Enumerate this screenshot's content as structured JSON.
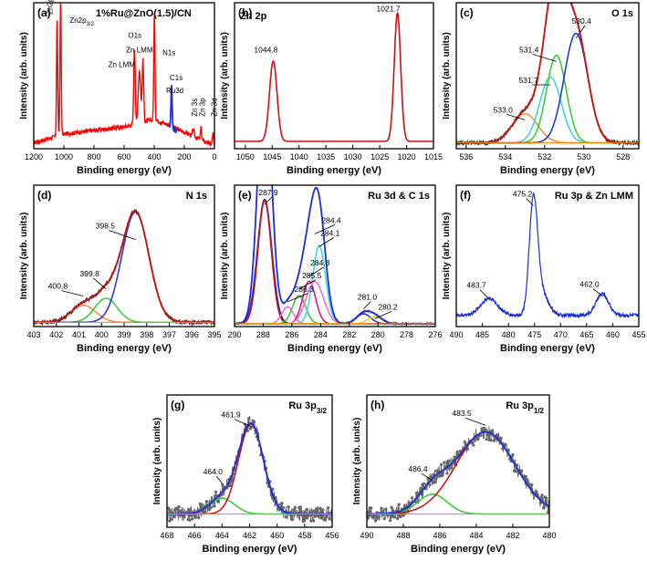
{
  "figure": {
    "domain": "XPS spectra"
  },
  "chart_data": [
    {
      "id": "a",
      "panel_label": "(a)",
      "title": "1%Ru@ZnO(1.5)/CN",
      "type": "line",
      "xlabel": "Binding energy (eV)",
      "ylabel": "Intensity (arb. units)",
      "xlim": [
        1200,
        0
      ],
      "ylim": [
        0,
        1
      ],
      "xticks": [
        1200,
        1000,
        800,
        600,
        400,
        200,
        0
      ],
      "series": [
        {
          "name": "survey",
          "color": "#ff0000",
          "width": 1.4,
          "peaks": [
            [
              1044.8,
              0.8,
              4
            ],
            [
              1021.7,
              0.92,
              4
            ],
            [
              531,
              0.52,
              5
            ],
            [
              498,
              0.36,
              8
            ],
            [
              475,
              0.42,
              5
            ],
            [
              399,
              0.72,
              4
            ],
            [
              285,
              0.28,
              4
            ],
            [
              140,
              0.05,
              5
            ],
            [
              89,
              0.08,
              4
            ],
            [
              10,
              0.08,
              4
            ]
          ],
          "background": [
            [
              1200,
              0.04
            ],
            [
              1000,
              0.1
            ],
            [
              600,
              0.15
            ],
            [
              400,
              0.2
            ],
            [
              300,
              0.16
            ],
            [
              0,
              0.02
            ]
          ]
        },
        {
          "name": "Ru segment",
          "color": "#1f2fd6",
          "width": 1.6,
          "xrange": [
            300,
            255
          ],
          "peaks": [
            [
              285,
              0.28,
              4
            ]
          ],
          "background": [
            [
              300,
              0.16
            ],
            [
              255,
              0.12
            ]
          ]
        }
      ],
      "annotations": [
        {
          "text": "Zn2p1/2",
          "rich": "Zn2p",
          "sub": "1/2",
          "rotate": -90
        },
        {
          "text": "Zn2p3/2",
          "rich": "Zn2p",
          "sub": "3/2"
        },
        {
          "text": "O1s"
        },
        {
          "text": "Zn LMM"
        },
        {
          "text": "Zn LMM"
        },
        {
          "text": "N1s"
        },
        {
          "text": "C1s"
        },
        {
          "text": "Ru3d"
        },
        {
          "text": "Zn 3s",
          "rotate": -90
        },
        {
          "text": "Zn 3p",
          "rotate": -90
        },
        {
          "text": "Zn 3d",
          "rotate": -90
        }
      ]
    },
    {
      "id": "b",
      "panel_label": "(b)",
      "title": "Zn 2p",
      "type": "line",
      "xlabel": "Binding energy (eV)",
      "ylabel": "Intensity (arb. units)",
      "xlim": [
        1052,
        1015
      ],
      "ylim": [
        0,
        1
      ],
      "xticks": [
        1050,
        1045,
        1040,
        1035,
        1030,
        1025,
        1020,
        1015
      ],
      "baseline": 0.05,
      "series": [
        {
          "name": "Zn 2p",
          "color": "#cc1111",
          "width": 1.6,
          "peaks": [
            [
              1044.8,
              0.55,
              0.7
            ],
            [
              1021.7,
              0.88,
              0.6
            ]
          ]
        }
      ],
      "peak_labels": [
        {
          "x": 1044.8,
          "text": "1044.8"
        },
        {
          "x": 1021.7,
          "text": "1021.7"
        }
      ]
    },
    {
      "id": "c",
      "panel_label": "(c)",
      "title": "O 1s",
      "type": "line",
      "xlabel": "Binding energy (eV)",
      "ylabel": "Intensity (arb. units)",
      "xlim": [
        536.5,
        527.2
      ],
      "ylim": [
        0,
        1
      ],
      "xticks": [
        536,
        534,
        532,
        530,
        528
      ],
      "baseline": 0.04,
      "noisy_envelope": true,
      "components": [
        {
          "name": "533.0",
          "center": 533.0,
          "height": 0.2,
          "sigma": 0.65,
          "color": "#f08a3c"
        },
        {
          "name": "531.7",
          "center": 531.7,
          "height": 0.45,
          "sigma": 0.55,
          "color": "#33d6e0"
        },
        {
          "name": "531.4",
          "center": 531.4,
          "height": 0.6,
          "sigma": 0.5,
          "color": "#33cc33"
        },
        {
          "name": "530.4",
          "center": 530.4,
          "height": 0.75,
          "sigma": 0.6,
          "color": "#1f2fd6"
        }
      ],
      "envelope_color": "#cc1111",
      "data_color": "#333333",
      "peak_labels": [
        {
          "x": 533.0,
          "text": "533.0"
        },
        {
          "x": 531.7,
          "text": "531.7"
        },
        {
          "x": 531.4,
          "text": "531.4"
        },
        {
          "x": 530.4,
          "text": "530.4"
        }
      ]
    },
    {
      "id": "d",
      "panel_label": "(d)",
      "title": "N 1s",
      "type": "line",
      "xlabel": "Binding energy (eV)",
      "ylabel": "Intensity (arb. units)",
      "xlim": [
        403,
        395
      ],
      "ylim": [
        0,
        1
      ],
      "xticks": [
        403,
        402,
        401,
        400,
        399,
        398,
        397,
        396,
        395
      ],
      "baseline": 0.03,
      "noisy_envelope": true,
      "components": [
        {
          "name": "400.8",
          "center": 400.8,
          "height": 0.12,
          "sigma": 0.55,
          "color": "#f08a3c"
        },
        {
          "name": "399.8",
          "center": 399.8,
          "height": 0.17,
          "sigma": 0.5,
          "color": "#33cc33"
        },
        {
          "name": "398.5",
          "center": 398.5,
          "height": 0.78,
          "sigma": 0.6,
          "color": "#1f2fd6"
        }
      ],
      "envelope_color": "#cc1111",
      "data_color": "#333333",
      "peak_labels": [
        {
          "x": 400.8,
          "text": "400.8"
        },
        {
          "x": 399.8,
          "text": "399.8"
        },
        {
          "x": 398.5,
          "text": "398.5"
        }
      ]
    },
    {
      "id": "e",
      "panel_label": "(e)",
      "title": "Ru 3d & C 1s",
      "type": "line",
      "xlabel": "Binding energy (eV)",
      "ylabel": "Intensity (arb. units)",
      "xlim": [
        290,
        276
      ],
      "ylim": [
        0,
        1
      ],
      "xticks": [
        290,
        288,
        286,
        284,
        282,
        280,
        278,
        276
      ],
      "baseline": 0.02,
      "components": [
        {
          "name": "287.9",
          "center": 287.9,
          "height": 0.88,
          "sigma": 0.5,
          "color": "#1f2fd6"
        },
        {
          "name": "287.9r",
          "center": 287.9,
          "height": 0.87,
          "sigma": 0.46,
          "color": "#cc1111"
        },
        {
          "name": "286.3",
          "center": 286.3,
          "height": 0.12,
          "sigma": 0.4,
          "color": "#ff66cc"
        },
        {
          "name": "285.5",
          "center": 285.5,
          "height": 0.2,
          "sigma": 0.45,
          "color": "#33cc33"
        },
        {
          "name": "284.8",
          "center": 284.8,
          "height": 0.3,
          "sigma": 0.45,
          "color": "#cc1188"
        },
        {
          "name": "284.1",
          "center": 284.1,
          "height": 0.55,
          "sigma": 0.45,
          "color": "#33d6e0"
        },
        {
          "name": "284.4",
          "center": 284.4,
          "height": 0.3,
          "sigma": 0.6,
          "color": "#ff66cc"
        },
        {
          "name": "281.0",
          "center": 281.0,
          "height": 0.07,
          "sigma": 0.5,
          "color": "#1f2fd6"
        },
        {
          "name": "280.2",
          "center": 280.2,
          "height": 0.05,
          "sigma": 0.5,
          "color": "#dede00"
        }
      ],
      "envelope_color": "#1f2fd6",
      "data_color": "#555555",
      "peak_labels": [
        {
          "x": 287.9,
          "text": "287.9"
        },
        {
          "x": 284.4,
          "text": "284.4"
        },
        {
          "x": 284.1,
          "text": "284.1"
        },
        {
          "x": 284.8,
          "text": "284.8"
        },
        {
          "x": 285.5,
          "text": "285.5"
        },
        {
          "x": 286.3,
          "text": "286.3"
        },
        {
          "x": 281.0,
          "text": "281.0"
        },
        {
          "x": 280.2,
          "text": "280.2"
        }
      ]
    },
    {
      "id": "f",
      "panel_label": "(f)",
      "title": "Ru 3p & Zn LMM",
      "type": "line",
      "xlabel": "Binding energy (eV)",
      "ylabel": "Intensity (arb. units)",
      "xlim": [
        490,
        455
      ],
      "ylim": [
        0,
        1
      ],
      "xticks": [
        490,
        485,
        480,
        475,
        470,
        465,
        460,
        455
      ],
      "baseline": 0.08,
      "noise": 0.025,
      "series": [
        {
          "name": "spectrum",
          "color": "#1f2fd6",
          "width": 1.2,
          "peaks": [
            [
              483.7,
              0.12,
              1.6
            ],
            [
              475.2,
              0.8,
              0.8
            ],
            [
              473.5,
              0.15,
              1.2
            ],
            [
              462.0,
              0.15,
              1.2
            ]
          ]
        }
      ],
      "peak_labels": [
        {
          "x": 483.7,
          "text": "483.7"
        },
        {
          "x": 475.2,
          "text": "475.2"
        },
        {
          "x": 462.0,
          "text": "462.0"
        }
      ]
    },
    {
      "id": "g",
      "panel_label": "(g)",
      "title": "Ru 3p3/2",
      "title_main": "Ru 3p",
      "title_sub": "3/2",
      "type": "line",
      "xlabel": "Binding energy (eV)",
      "ylabel": "Intensity (arb. units)",
      "xlim": [
        468,
        456
      ],
      "ylim": [
        0,
        1
      ],
      "xticks": [
        468,
        466,
        464,
        462,
        460,
        458,
        456
      ],
      "baseline": 0.1,
      "noise": 0.11,
      "data_markers": true,
      "components": [
        {
          "name": "464.0",
          "center": 464.0,
          "height": 0.12,
          "sigma": 0.9,
          "color": "#33cc33"
        },
        {
          "name": "461.9",
          "center": 461.9,
          "height": 0.68,
          "sigma": 0.9,
          "color": "#cc1111"
        }
      ],
      "envelope_color": "#1f2fd6",
      "data_color": "#666666",
      "peak_labels": [
        {
          "x": 464.0,
          "text": "464.0"
        },
        {
          "x": 461.9,
          "text": "461.9"
        }
      ]
    },
    {
      "id": "h",
      "panel_label": "(h)",
      "title": "Ru 3p1/2",
      "title_main": "Ru 3p",
      "title_sub": "1/2",
      "type": "line",
      "xlabel": "Binding energy (eV)",
      "ylabel": "Intensity (arb. units)",
      "xlim": [
        490,
        480
      ],
      "ylim": [
        0,
        1
      ],
      "xticks": [
        490,
        488,
        486,
        484,
        482,
        480
      ],
      "baseline": 0.1,
      "noise": 0.11,
      "data_markers": true,
      "components": [
        {
          "name": "486.4",
          "center": 486.4,
          "height": 0.15,
          "sigma": 0.8,
          "color": "#33cc33"
        },
        {
          "name": "483.5",
          "center": 483.5,
          "height": 0.62,
          "sigma": 1.6,
          "color": "#cc1111"
        }
      ],
      "envelope_color": "#1f2fd6",
      "data_color": "#666666",
      "peak_labels": [
        {
          "x": 486.4,
          "text": "486.4"
        },
        {
          "x": 483.5,
          "text": "483.5"
        }
      ]
    }
  ]
}
